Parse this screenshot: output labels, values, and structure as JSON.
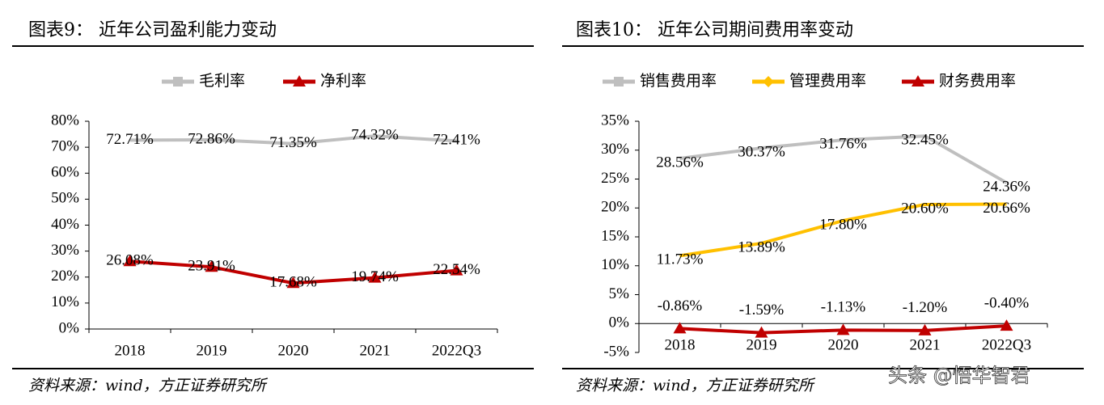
{
  "chart_data": [
    {
      "type": "line",
      "title": "图表9：  近年公司盈利能力变动",
      "categories": [
        "2018",
        "2019",
        "2020",
        "2021",
        "2022Q3"
      ],
      "series": [
        {
          "name": "毛利率",
          "color": "#bfbfbf",
          "marker": "square",
          "values": [
            72.71,
            72.86,
            71.35,
            74.32,
            72.41
          ],
          "value_labels": [
            "72.71%",
            "72.86%",
            "71.35%",
            "74.32%",
            "72.41%"
          ]
        },
        {
          "name": "净利率",
          "color": "#c00000",
          "marker": "triangle",
          "values": [
            26.08,
            23.91,
            17.68,
            19.74,
            22.54
          ],
          "value_labels": [
            "26.08%",
            "23.91%",
            "17.68%",
            "19.74%",
            "22.54%"
          ]
        }
      ],
      "ylim": [
        0,
        80
      ],
      "yticks": [
        {
          "value": 0,
          "label": "0%"
        },
        {
          "value": 10,
          "label": "10%"
        },
        {
          "value": 20,
          "label": "20%"
        },
        {
          "value": 30,
          "label": "30%"
        },
        {
          "value": 40,
          "label": "40%"
        },
        {
          "value": 50,
          "label": "50%"
        },
        {
          "value": 60,
          "label": "60%"
        },
        {
          "value": 70,
          "label": "70%"
        },
        {
          "value": 80,
          "label": "80%"
        }
      ],
      "source": "资料来源：wind，方正证券研究所"
    },
    {
      "type": "line",
      "title": "图表10：  近年公司期间费用率变动",
      "categories": [
        "2018",
        "2019",
        "2020",
        "2021",
        "2022Q3"
      ],
      "series": [
        {
          "name": "销售费用率",
          "color": "#bfbfbf",
          "marker": "square",
          "values": [
            28.56,
            30.37,
            31.76,
            32.45,
            24.36
          ],
          "value_labels": [
            "28.56%",
            "30.37%",
            "31.76%",
            "32.45%",
            "24.36%"
          ]
        },
        {
          "name": "管理费用率",
          "color": "#ffc000",
          "marker": "diamond",
          "values": [
            11.73,
            13.89,
            17.8,
            20.6,
            20.66
          ],
          "value_labels": [
            "11.73%",
            "13.89%",
            "17.80%",
            "20.60%",
            "20.66%"
          ]
        },
        {
          "name": "财务费用率",
          "color": "#c00000",
          "marker": "triangle",
          "values": [
            -0.86,
            -1.59,
            -1.13,
            -1.2,
            -0.4
          ],
          "value_labels": [
            "-0.86%",
            "-1.59%",
            "-1.13%",
            "-1.20%",
            "-0.40%"
          ]
        }
      ],
      "ylim": [
        -5,
        35
      ],
      "yticks": [
        {
          "value": -5,
          "label": "-5%"
        },
        {
          "value": 0,
          "label": "0%"
        },
        {
          "value": 5,
          "label": "5%"
        },
        {
          "value": 10,
          "label": "10%"
        },
        {
          "value": 15,
          "label": "15%"
        },
        {
          "value": 20,
          "label": "20%"
        },
        {
          "value": 25,
          "label": "25%"
        },
        {
          "value": 30,
          "label": "30%"
        },
        {
          "value": 35,
          "label": "35%"
        }
      ],
      "source": "资料来源：wind，方正证券研究所"
    }
  ],
  "watermark": "头条 @悟华智君"
}
